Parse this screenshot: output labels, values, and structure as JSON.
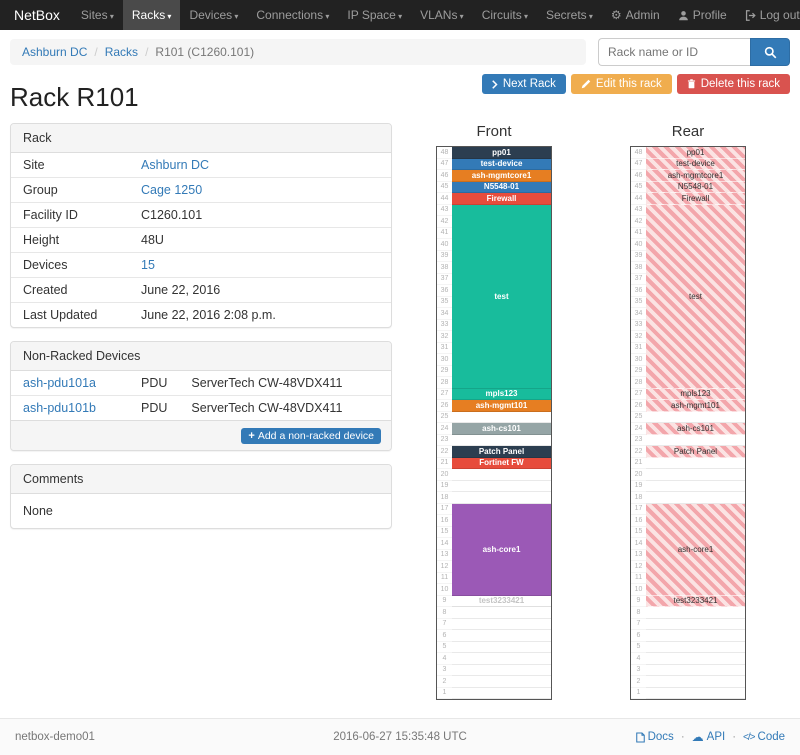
{
  "theme": {
    "primary": "#337ab7",
    "warning": "#f0ad4e",
    "danger": "#d9534f",
    "navbar_bg": "#222222",
    "panel_heading_bg": "#f5f5f5",
    "stripe_light": "#fbe3e3",
    "stripe_dark": "#f3a6ab"
  },
  "navbar": {
    "brand": "NetBox",
    "items": [
      {
        "label": "Sites",
        "active": false
      },
      {
        "label": "Racks",
        "active": true
      },
      {
        "label": "Devices",
        "active": false
      },
      {
        "label": "Connections",
        "active": false
      },
      {
        "label": "IP Space",
        "active": false
      },
      {
        "label": "VLANs",
        "active": false
      },
      {
        "label": "Circuits",
        "active": false
      },
      {
        "label": "Secrets",
        "active": false
      }
    ],
    "right_items": [
      {
        "label": "Admin",
        "icon": "gear"
      },
      {
        "label": "Profile",
        "icon": "user"
      },
      {
        "label": "Log out",
        "icon": "log-out"
      }
    ]
  },
  "breadcrumb": [
    {
      "label": "Ashburn DC",
      "link": true
    },
    {
      "label": "Racks",
      "link": true
    },
    {
      "label": "R101 (C1260.101)",
      "link": false
    }
  ],
  "search": {
    "placeholder": "Rack name or ID"
  },
  "actions": {
    "next_label": "Next Rack",
    "edit_label": "Edit this rack",
    "delete_label": "Delete this rack"
  },
  "page_title": "Rack R101",
  "rack_panel": {
    "title": "Rack",
    "rows": [
      {
        "label": "Site",
        "value": "Ashburn DC",
        "link": true
      },
      {
        "label": "Group",
        "value": "Cage 1250",
        "link": true
      },
      {
        "label": "Facility ID",
        "value": "C1260.101",
        "link": false
      },
      {
        "label": "Height",
        "value": "48U",
        "link": false
      },
      {
        "label": "Devices",
        "value": "15",
        "link": true
      },
      {
        "label": "Created",
        "value": "June 22, 2016",
        "link": false
      },
      {
        "label": "Last Updated",
        "value": "June 22, 2016 2:08 p.m.",
        "link": false
      }
    ]
  },
  "nonracked_panel": {
    "title": "Non-Racked Devices",
    "rows": [
      {
        "name": "ash-pdu101a",
        "role": "PDU",
        "type": "ServerTech CW-48VDX411"
      },
      {
        "name": "ash-pdu101b",
        "role": "PDU",
        "type": "ServerTech CW-48VDX411"
      }
    ],
    "add_label": "Add a non-racked device"
  },
  "comments_panel": {
    "title": "Comments",
    "body_text": "None"
  },
  "elevation": {
    "front_title": "Front",
    "rear_title": "Rear",
    "rack_height": 48,
    "devices": [
      {
        "name": "pp01",
        "top_unit": 48,
        "u_height": 1,
        "color": "#2c3e50",
        "rear": true
      },
      {
        "name": "test-device",
        "top_unit": 47,
        "u_height": 1,
        "color": "#337ab7",
        "rear": true
      },
      {
        "name": "ash-mgmtcore1",
        "top_unit": 46,
        "u_height": 1,
        "color": "#e67e22",
        "rear": true
      },
      {
        "name": "N5548-01",
        "top_unit": 45,
        "u_height": 1,
        "color": "#337ab7",
        "rear": true
      },
      {
        "name": "Firewall",
        "top_unit": 44,
        "u_height": 1,
        "color": "#e74c3c",
        "rear": true
      },
      {
        "name": "test",
        "top_unit": 43,
        "u_height": 16,
        "color": "#18bc9c",
        "rear": true
      },
      {
        "name": "mpls123",
        "top_unit": 27,
        "u_height": 1,
        "color": "#18bc9c",
        "rear": true
      },
      {
        "name": "ash-mgmt101",
        "top_unit": 26,
        "u_height": 1,
        "color": "#e67e22",
        "rear": true
      },
      {
        "name": "ash-cs101",
        "top_unit": 24,
        "u_height": 1,
        "color": "#95a5a6",
        "rear": true
      },
      {
        "name": "Patch Panel",
        "top_unit": 22,
        "u_height": 1,
        "color": "#2c3e50",
        "rear": true
      },
      {
        "name": "Fortinet FW",
        "top_unit": 21,
        "u_height": 1,
        "color": "#e74c3c",
        "rear": false
      },
      {
        "name": "ash-core1",
        "top_unit": 17,
        "u_height": 8,
        "color": "#9b59b6",
        "rear": true
      },
      {
        "name": "test3233421",
        "top_unit": 9,
        "u_height": 1,
        "color": "#ffffff",
        "text_color": "#c4c4c4",
        "rear": true
      }
    ]
  },
  "footer": {
    "hostname": "netbox-demo01",
    "timestamp": "2016-06-27 15:35:48 UTC",
    "links": [
      {
        "label": "Docs",
        "icon": "doc"
      },
      {
        "label": "API",
        "icon": "cloud"
      },
      {
        "label": "Code",
        "icon": "code"
      }
    ]
  }
}
